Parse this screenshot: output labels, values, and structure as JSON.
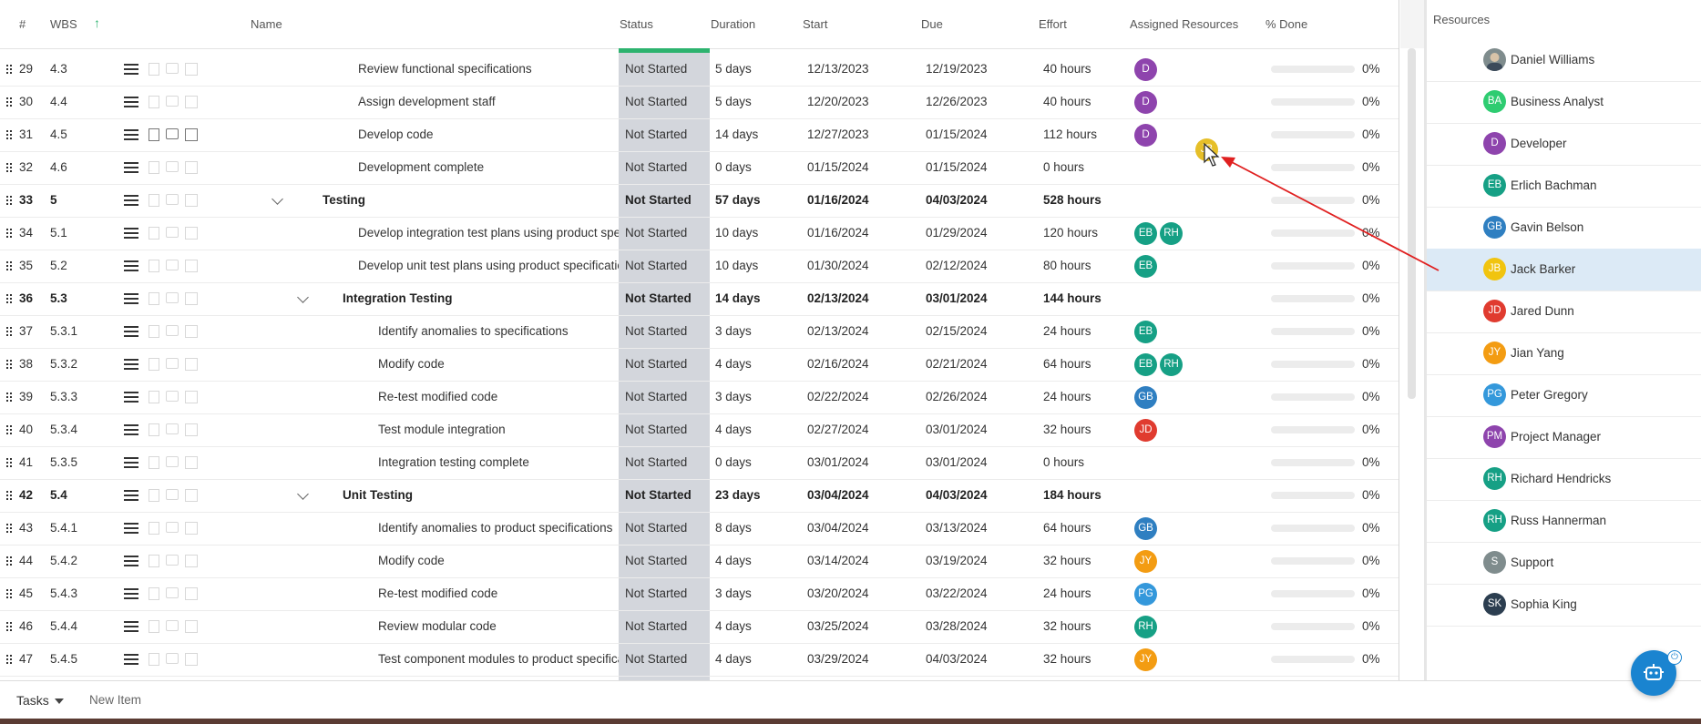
{
  "header": {
    "num": "#",
    "wbs": "WBS",
    "sort_icon": "arrow-up-icon",
    "name": "Name",
    "status": "Status",
    "duration": "Duration",
    "start": "Start",
    "due": "Due",
    "effort": "Effort",
    "assigned": "Assigned Resources",
    "done": "% Done"
  },
  "colors": {
    "accent_green": "#2db36f",
    "status_band": "#d3d6dc",
    "selection": "#dceaf6",
    "arrow_red": "#e02020",
    "fab_blue": "#1a84d0"
  },
  "rows": [
    {
      "num": "29",
      "wbs": "4.3",
      "name": "Review functional specifications",
      "status": "Not Started",
      "duration": "5 days",
      "start": "12/13/2023",
      "due": "12/19/2023",
      "effort": "40 hours",
      "assigned": [
        {
          "initials": "D",
          "color": "#8e44ad"
        }
      ],
      "done": "0%",
      "summary": false,
      "level": 1
    },
    {
      "num": "30",
      "wbs": "4.4",
      "name": "Assign development staff",
      "status": "Not Started",
      "duration": "5 days",
      "start": "12/20/2023",
      "due": "12/26/2023",
      "effort": "40 hours",
      "assigned": [
        {
          "initials": "D",
          "color": "#8e44ad"
        }
      ],
      "done": "0%",
      "summary": false,
      "level": 1
    },
    {
      "num": "31",
      "wbs": "4.5",
      "name": "Develop code",
      "status": "Not Started",
      "duration": "14 days",
      "start": "12/27/2023",
      "due": "01/15/2024",
      "effort": "112 hours",
      "assigned": [
        {
          "initials": "D",
          "color": "#8e44ad"
        }
      ],
      "done": "0%",
      "summary": false,
      "level": 1,
      "dark_icons": true
    },
    {
      "num": "32",
      "wbs": "4.6",
      "name": "Development complete",
      "status": "Not Started",
      "duration": "0 days",
      "start": "01/15/2024",
      "due": "01/15/2024",
      "effort": "0 hours",
      "assigned": [],
      "done": "0%",
      "summary": false,
      "level": 1
    },
    {
      "num": "33",
      "wbs": "5",
      "name": "Testing",
      "status": "Not Started",
      "duration": "57 days",
      "start": "01/16/2024",
      "due": "04/03/2024",
      "effort": "528 hours",
      "assigned": [],
      "done": "0%",
      "summary": true,
      "level": 0
    },
    {
      "num": "34",
      "wbs": "5.1",
      "name": "Develop integration test plans using product specifications",
      "status": "Not Started",
      "duration": "10 days",
      "start": "01/16/2024",
      "due": "01/29/2024",
      "effort": "120 hours",
      "assigned": [
        {
          "initials": "EB",
          "color": "#16a085"
        },
        {
          "initials": "RH",
          "color": "#16a085"
        }
      ],
      "done": "0%",
      "summary": false,
      "level": 1
    },
    {
      "num": "35",
      "wbs": "5.2",
      "name": "Develop unit test plans using product specifications",
      "status": "Not Started",
      "duration": "10 days",
      "start": "01/30/2024",
      "due": "02/12/2024",
      "effort": "80 hours",
      "assigned": [
        {
          "initials": "EB",
          "color": "#16a085"
        }
      ],
      "done": "0%",
      "summary": false,
      "level": 1
    },
    {
      "num": "36",
      "wbs": "5.3",
      "name": "Integration Testing",
      "status": "Not Started",
      "duration": "14 days",
      "start": "02/13/2024",
      "due": "03/01/2024",
      "effort": "144 hours",
      "assigned": [],
      "done": "0%",
      "summary": true,
      "level": 1
    },
    {
      "num": "37",
      "wbs": "5.3.1",
      "name": "Identify anomalies to specifications",
      "status": "Not Started",
      "duration": "3 days",
      "start": "02/13/2024",
      "due": "02/15/2024",
      "effort": "24 hours",
      "assigned": [
        {
          "initials": "EB",
          "color": "#16a085"
        }
      ],
      "done": "0%",
      "summary": false,
      "level": 2
    },
    {
      "num": "38",
      "wbs": "5.3.2",
      "name": "Modify code",
      "status": "Not Started",
      "duration": "4 days",
      "start": "02/16/2024",
      "due": "02/21/2024",
      "effort": "64 hours",
      "assigned": [
        {
          "initials": "EB",
          "color": "#16a085"
        },
        {
          "initials": "RH",
          "color": "#16a085"
        }
      ],
      "done": "0%",
      "summary": false,
      "level": 2
    },
    {
      "num": "39",
      "wbs": "5.3.3",
      "name": "Re-test modified code",
      "status": "Not Started",
      "duration": "3 days",
      "start": "02/22/2024",
      "due": "02/26/2024",
      "effort": "24 hours",
      "assigned": [
        {
          "initials": "GB",
          "color": "#2f7fc1"
        }
      ],
      "done": "0%",
      "summary": false,
      "level": 2
    },
    {
      "num": "40",
      "wbs": "5.3.4",
      "name": "Test module integration",
      "status": "Not Started",
      "duration": "4 days",
      "start": "02/27/2024",
      "due": "03/01/2024",
      "effort": "32 hours",
      "assigned": [
        {
          "initials": "JD",
          "color": "#e03b2f"
        }
      ],
      "done": "0%",
      "summary": false,
      "level": 2
    },
    {
      "num": "41",
      "wbs": "5.3.5",
      "name": "Integration testing complete",
      "status": "Not Started",
      "duration": "0 days",
      "start": "03/01/2024",
      "due": "03/01/2024",
      "effort": "0 hours",
      "assigned": [],
      "done": "0%",
      "summary": false,
      "level": 2
    },
    {
      "num": "42",
      "wbs": "5.4",
      "name": "Unit Testing",
      "status": "Not Started",
      "duration": "23 days",
      "start": "03/04/2024",
      "due": "04/03/2024",
      "effort": "184 hours",
      "assigned": [],
      "done": "0%",
      "summary": true,
      "level": 1
    },
    {
      "num": "43",
      "wbs": "5.4.1",
      "name": "Identify anomalies to product specifications",
      "status": "Not Started",
      "duration": "8 days",
      "start": "03/04/2024",
      "due": "03/13/2024",
      "effort": "64 hours",
      "assigned": [
        {
          "initials": "GB",
          "color": "#2f7fc1"
        }
      ],
      "done": "0%",
      "summary": false,
      "level": 2
    },
    {
      "num": "44",
      "wbs": "5.4.2",
      "name": "Modify code",
      "status": "Not Started",
      "duration": "4 days",
      "start": "03/14/2024",
      "due": "03/19/2024",
      "effort": "32 hours",
      "assigned": [
        {
          "initials": "JY",
          "color": "#f39c12"
        }
      ],
      "done": "0%",
      "summary": false,
      "level": 2
    },
    {
      "num": "45",
      "wbs": "5.4.3",
      "name": "Re-test modified code",
      "status": "Not Started",
      "duration": "3 days",
      "start": "03/20/2024",
      "due": "03/22/2024",
      "effort": "24 hours",
      "assigned": [
        {
          "initials": "PG",
          "color": "#3498db"
        }
      ],
      "done": "0%",
      "summary": false,
      "level": 2
    },
    {
      "num": "46",
      "wbs": "5.4.4",
      "name": "Review modular code",
      "status": "Not Started",
      "duration": "4 days",
      "start": "03/25/2024",
      "due": "03/28/2024",
      "effort": "32 hours",
      "assigned": [
        {
          "initials": "RH",
          "color": "#16a085"
        }
      ],
      "done": "0%",
      "summary": false,
      "level": 2
    },
    {
      "num": "47",
      "wbs": "5.4.5",
      "name": "Test component modules to product specifications",
      "status": "Not Started",
      "duration": "4 days",
      "start": "03/29/2024",
      "due": "04/03/2024",
      "effort": "32 hours",
      "assigned": [
        {
          "initials": "JY",
          "color": "#f39c12"
        }
      ],
      "done": "0%",
      "summary": false,
      "level": 2
    }
  ],
  "drag": {
    "initials": "JB",
    "color": "#e5bc1d"
  },
  "resources": {
    "title": "Resources",
    "items": [
      {
        "name": "Daniel Williams",
        "initials": "",
        "color": "#7f8c8d",
        "photo": true
      },
      {
        "name": "Business Analyst",
        "initials": "BA",
        "color": "#2ecc71"
      },
      {
        "name": "Developer",
        "initials": "D",
        "color": "#8e44ad"
      },
      {
        "name": "Erlich Bachman",
        "initials": "EB",
        "color": "#16a085"
      },
      {
        "name": "Gavin Belson",
        "initials": "GB",
        "color": "#2f7fc1"
      },
      {
        "name": "Jack Barker",
        "initials": "JB",
        "color": "#f1c40f",
        "selected": true
      },
      {
        "name": "Jared Dunn",
        "initials": "JD",
        "color": "#e03b2f"
      },
      {
        "name": "Jian Yang",
        "initials": "JY",
        "color": "#f39c12"
      },
      {
        "name": "Peter Gregory",
        "initials": "PG",
        "color": "#3498db"
      },
      {
        "name": "Project Manager",
        "initials": "PM",
        "color": "#8e44ad"
      },
      {
        "name": "Richard Hendricks",
        "initials": "RH",
        "color": "#16a085"
      },
      {
        "name": "Russ Hannerman",
        "initials": "RH",
        "color": "#16a085"
      },
      {
        "name": "Support",
        "initials": "S",
        "color": "#7f8c8d"
      },
      {
        "name": "Sophia King",
        "initials": "SK",
        "color": "#2c3e50"
      }
    ]
  },
  "bottom": {
    "tasks_label": "Tasks",
    "new_item": "New Item",
    "fab_icon": "bot-icon",
    "fab_badge_icon": "power-icon"
  }
}
